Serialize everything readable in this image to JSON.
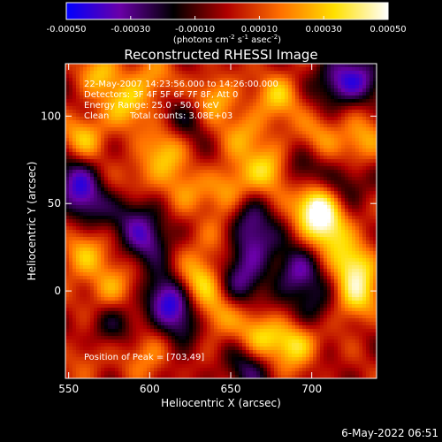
{
  "chart_data": {
    "type": "heatmap",
    "title": "Reconstructed RHESSI Image",
    "xlabel": "Heliocentric X (arcsec)",
    "ylabel": "Heliocentric Y (arcsec)",
    "xlim": [
      548,
      740
    ],
    "ylim": [
      -50,
      130
    ],
    "x_ticks": [
      550,
      600,
      650,
      700
    ],
    "y_ticks": [
      0,
      50,
      100
    ],
    "colorbar": {
      "min": -0.0005,
      "max": 0.0005,
      "tick_values": [
        -0.0005,
        -0.0003,
        -0.0001,
        0.0001,
        0.0003,
        0.0005
      ],
      "tick_labels": [
        "-0.00050",
        "-0.00030",
        "-0.00010",
        "0.00010",
        "0.00030",
        "0.00050"
      ],
      "units_label": "(photons cm^-2 s^-1 asec^-2)",
      "colors": [
        "#0000ff",
        "#6a00a8",
        "#000000",
        "#b00000",
        "#ff7000",
        "#ffe000",
        "#ffffff"
      ]
    },
    "annotations": {
      "line1": "22-May-2007 14:23:56.000 to 14:26:00.000",
      "line2": "Detectors: 3F 4F 5F 6F 7F 8F, Att 0",
      "line3": "Energy Range: 25.0 - 50.0 keV",
      "line4a": "Clean",
      "line4b": "Total counts: 3.08E+03",
      "peak": "Position of Peak = [703,49]"
    },
    "peak_position": [
      703,
      49
    ],
    "blobs": [
      {
        "x": 703,
        "y": 49,
        "v": 1.0
      },
      {
        "x": 712,
        "y": 35,
        "v": 0.65
      },
      {
        "x": 560,
        "y": 88,
        "v": 0.55
      },
      {
        "x": 585,
        "y": 105,
        "v": 0.5
      },
      {
        "x": 640,
        "y": 110,
        "v": 0.6
      },
      {
        "x": 680,
        "y": 112,
        "v": 0.55
      },
      {
        "x": 610,
        "y": 80,
        "v": 0.5
      },
      {
        "x": 650,
        "y": 60,
        "v": 0.55
      },
      {
        "x": 675,
        "y": 70,
        "v": 0.6
      },
      {
        "x": 620,
        "y": 55,
        "v": 0.4
      },
      {
        "x": 730,
        "y": 85,
        "v": 0.55
      },
      {
        "x": 727,
        "y": 15,
        "v": 0.7
      },
      {
        "x": 727,
        "y": -5,
        "v": 0.65
      },
      {
        "x": 690,
        "y": -30,
        "v": 0.75
      },
      {
        "x": 668,
        "y": -25,
        "v": 0.55
      },
      {
        "x": 630,
        "y": 5,
        "v": 0.6
      },
      {
        "x": 640,
        "y": -15,
        "v": 0.5
      },
      {
        "x": 558,
        "y": 20,
        "v": 0.55
      },
      {
        "x": 575,
        "y": 0,
        "v": 0.5
      },
      {
        "x": 600,
        "y": -35,
        "v": 0.45
      },
      {
        "x": 570,
        "y": 125,
        "v": 0.5
      },
      {
        "x": 600,
        "y": 120,
        "v": 0.45
      },
      {
        "x": 660,
        "y": 90,
        "v": 0.45
      },
      {
        "x": 595,
        "y": 65,
        "v": 0.35
      },
      {
        "x": 560,
        "y": -40,
        "v": 0.3
      },
      {
        "x": 705,
        "y": 90,
        "v": 0.4
      },
      {
        "x": 640,
        "y": 30,
        "v": 0.35
      },
      {
        "x": 690,
        "y": 10,
        "v": -0.6
      },
      {
        "x": 665,
        "y": 25,
        "v": -0.55
      },
      {
        "x": 600,
        "y": 30,
        "v": -0.6
      },
      {
        "x": 590,
        "y": 45,
        "v": -0.45
      },
      {
        "x": 560,
        "y": 50,
        "v": -0.5
      },
      {
        "x": 610,
        "y": -5,
        "v": -0.8
      },
      {
        "x": 620,
        "y": -20,
        "v": -0.55
      },
      {
        "x": 655,
        "y": 5,
        "v": -0.5
      },
      {
        "x": 700,
        "y": -10,
        "v": -0.45
      },
      {
        "x": 715,
        "y": 120,
        "v": -0.6
      },
      {
        "x": 730,
        "y": 120,
        "v": -0.5
      },
      {
        "x": 695,
        "y": 70,
        "v": -0.4
      },
      {
        "x": 625,
        "y": 100,
        "v": -0.35
      },
      {
        "x": 660,
        "y": 40,
        "v": -0.45
      },
      {
        "x": 720,
        "y": 60,
        "v": -0.45
      },
      {
        "x": 660,
        "y": -45,
        "v": -0.45
      },
      {
        "x": 575,
        "y": -20,
        "v": -0.4
      },
      {
        "x": 555,
        "y": 65,
        "v": -0.55
      }
    ]
  },
  "footer": {
    "date": "6-May-2022 06:51"
  }
}
